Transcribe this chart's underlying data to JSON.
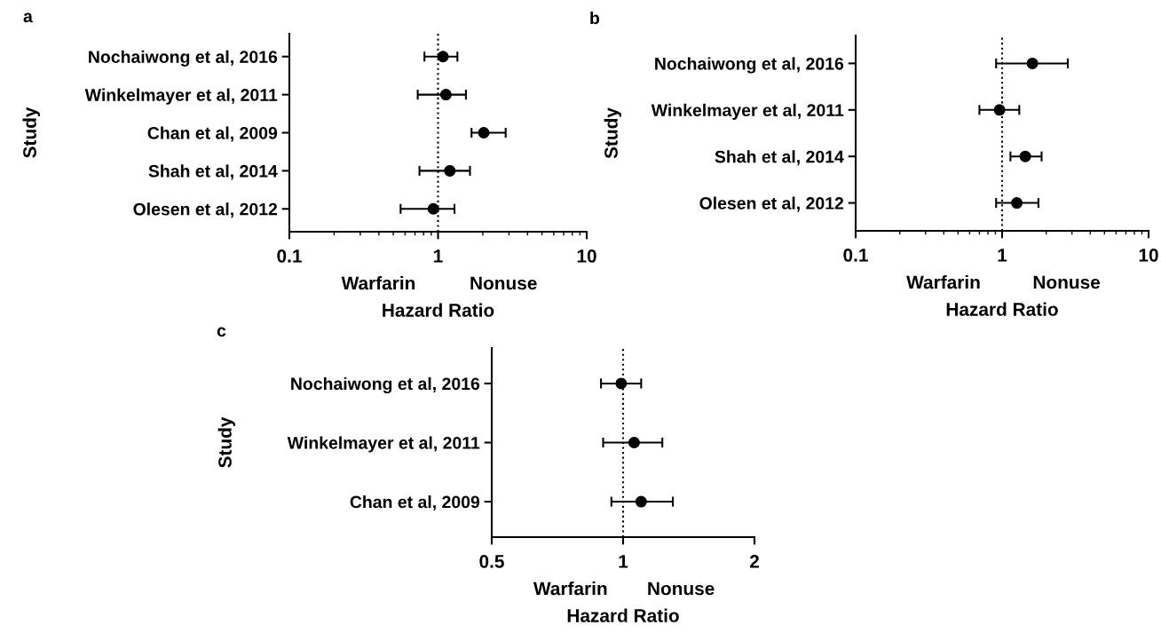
{
  "chart_data": [
    {
      "type": "scatter",
      "orientation": "horizontal",
      "title": "a",
      "ylabel": "Study",
      "xlabel": "Hazard Ratio",
      "log": "x",
      "marker": "circle",
      "categories": [
        "Nochaiwong et al, 2016",
        "Winkelmayer et al, 2011",
        "Chan et al, 2009",
        "Shah et al, 2014",
        "Olesen et al, 2012"
      ],
      "series": [
        {
          "color": "#000000",
          "values": [
            1.08,
            1.13,
            2.03,
            1.2,
            0.93
          ],
          "errors": [
            [
              0.81,
              1.35
            ],
            [
              0.73,
              1.54
            ],
            [
              1.68,
              2.85
            ],
            [
              0.75,
              1.64
            ],
            [
              0.56,
              1.29
            ]
          ]
        }
      ],
      "xlim": [
        0.1,
        10
      ],
      "xticks": [
        0.1,
        1,
        10
      ],
      "ref_lines": [
        {
          "axis": "x",
          "value": 1,
          "color": "#000000",
          "line_style": "dotted"
        }
      ],
      "annotations": [
        "Warfarin",
        "Nonuse"
      ]
    },
    {
      "type": "scatter",
      "orientation": "horizontal",
      "title": "b",
      "ylabel": "Study",
      "xlabel": "Hazard Ratio",
      "log": "x",
      "marker": "circle",
      "categories": [
        "Nochaiwong et al, 2016",
        "Winkelmayer et al, 2011",
        "Shah et al, 2014",
        "Olesen et al, 2012"
      ],
      "series": [
        {
          "color": "#000000",
          "values": [
            1.61,
            0.96,
            1.44,
            1.26
          ],
          "errors": [
            [
              0.91,
              2.81
            ],
            [
              0.7,
              1.31
            ],
            [
              1.14,
              1.86
            ],
            [
              0.91,
              1.77
            ]
          ]
        }
      ],
      "xlim": [
        0.1,
        10
      ],
      "xticks": [
        0.1,
        1,
        10
      ],
      "ref_lines": [
        {
          "axis": "x",
          "value": 1,
          "color": "#000000",
          "line_style": "dotted"
        }
      ],
      "annotations": [
        "Warfarin",
        "Nonuse"
      ]
    },
    {
      "type": "scatter",
      "orientation": "horizontal",
      "title": "c",
      "ylabel": "Study",
      "xlabel": "Hazard Ratio",
      "log": "x",
      "marker": "circle",
      "categories": [
        "Nochaiwong et al, 2016",
        "Winkelmayer et al, 2011",
        "Chan et al, 2009"
      ],
      "series": [
        {
          "color": "#000000",
          "values": [
            0.99,
            1.06,
            1.1
          ],
          "errors": [
            [
              0.89,
              1.1
            ],
            [
              0.9,
              1.23
            ],
            [
              0.94,
              1.3
            ]
          ]
        }
      ],
      "xlim": [
        0.5,
        2
      ],
      "xticks": [
        0.5,
        1,
        2
      ],
      "ref_lines": [
        {
          "axis": "x",
          "value": 1,
          "color": "#000000",
          "line_style": "dotted"
        }
      ],
      "annotations": [
        "Warfarin",
        "Nonuse"
      ]
    }
  ]
}
